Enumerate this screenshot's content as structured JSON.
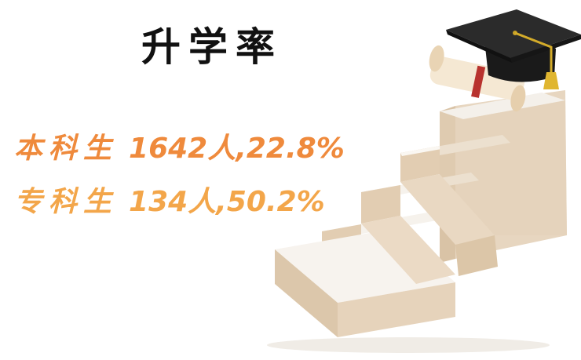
{
  "title": "升学率",
  "stats": [
    {
      "label": "本科生",
      "value": "1642人,22.8%",
      "color": "#ef8a3c"
    },
    {
      "label": "专科生",
      "value": "134人,50.2%",
      "color": "#f3a64a"
    }
  ],
  "icons": [
    "graduation-cap-icon",
    "diploma-scroll-icon",
    "staircase-illustration"
  ]
}
